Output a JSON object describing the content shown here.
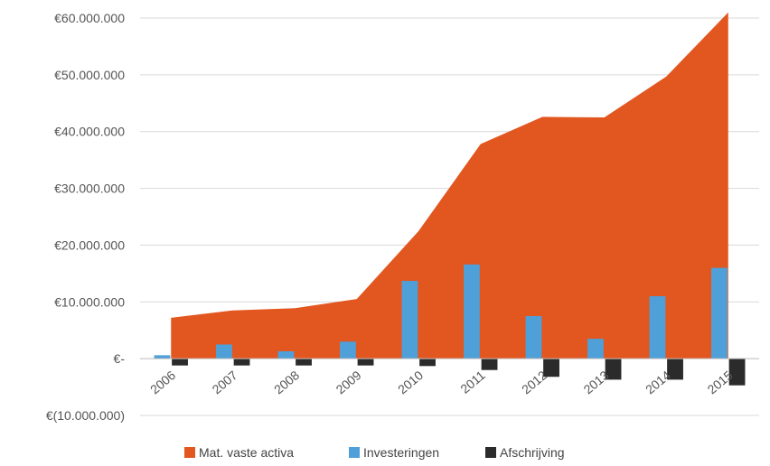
{
  "chart_data": {
    "type": "area",
    "categories": [
      "2006",
      "2007",
      "2008",
      "2009",
      "2010",
      "2011",
      "2012",
      "2013",
      "2014",
      "2015"
    ],
    "series": [
      {
        "name": "Mat. vaste activa",
        "kind": "area",
        "values": [
          7200000,
          8500000,
          8900000,
          10500000,
          22500000,
          37800000,
          42600000,
          42500000,
          49700000,
          61000000
        ],
        "color": "#e2561f"
      },
      {
        "name": "Investeringen",
        "kind": "bar",
        "values": [
          600000,
          2500000,
          1300000,
          3000000,
          13700000,
          16600000,
          7500000,
          3500000,
          11000000,
          16000000
        ],
        "color": "#4f9fd8"
      },
      {
        "name": "Afschrijving",
        "kind": "bar",
        "values": [
          -1200000,
          -1200000,
          -1200000,
          -1200000,
          -1300000,
          -2000000,
          -3200000,
          -3700000,
          -3700000,
          -4700000
        ],
        "color": "#2b2b2b"
      }
    ],
    "ylim": [
      -10000000,
      60000000
    ],
    "y_ticks": [
      {
        "value": 60000000,
        "label": "€60.000.000"
      },
      {
        "value": 50000000,
        "label": "€50.000.000"
      },
      {
        "value": 40000000,
        "label": "€40.000.000"
      },
      {
        "value": 30000000,
        "label": "€30.000.000"
      },
      {
        "value": 20000000,
        "label": "€20.000.000"
      },
      {
        "value": 10000000,
        "label": "€10.000.000"
      },
      {
        "value": 0,
        "label": "€-"
      },
      {
        "value": -10000000,
        "label": "€(10.000.000)"
      }
    ],
    "grid": true,
    "legend_position": "bottom",
    "title": "",
    "xlabel": "",
    "ylabel": ""
  }
}
